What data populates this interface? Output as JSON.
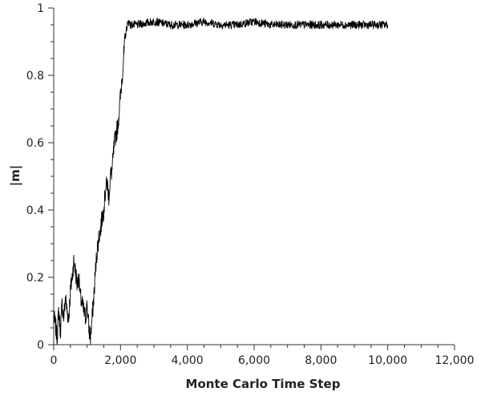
{
  "chart_data": {
    "type": "line",
    "title": "",
    "xlabel": "Monte Carlo Time Step",
    "ylabel": "|m|",
    "xlim": [
      0,
      12000
    ],
    "ylim": [
      0,
      1
    ],
    "grid": false,
    "legend": "none",
    "x_ticks": [
      {
        "value": 0,
        "label": "0"
      },
      {
        "value": 2000,
        "label": "2,000"
      },
      {
        "value": 4000,
        "label": "4,000"
      },
      {
        "value": 6000,
        "label": "6,000"
      },
      {
        "value": 8000,
        "label": "8,000"
      },
      {
        "value": 10000,
        "label": "10,000"
      },
      {
        "value": 12000,
        "label": "12,000"
      }
    ],
    "y_ticks": [
      {
        "value": 0,
        "label": "0"
      },
      {
        "value": 0.2,
        "label": "0.2"
      },
      {
        "value": 0.4,
        "label": "0.4"
      },
      {
        "value": 0.6,
        "label": "0.6"
      },
      {
        "value": 0.8,
        "label": "0.8"
      },
      {
        "value": 1,
        "label": "1"
      }
    ],
    "series": [
      {
        "color": "#000000",
        "x": [
          0,
          50,
          100,
          150,
          200,
          250,
          300,
          350,
          400,
          450,
          500,
          550,
          600,
          650,
          700,
          750,
          800,
          850,
          900,
          950,
          1000,
          1050,
          1100,
          1150,
          1200,
          1250,
          1300,
          1350,
          1400,
          1450,
          1500,
          1550,
          1600,
          1650,
          1700,
          1750,
          1800,
          1850,
          1900,
          1950,
          2000,
          2050,
          2100,
          2150,
          2200,
          2250,
          2300,
          2500,
          3000,
          3500,
          4000,
          4500,
          5000,
          5500,
          6000,
          6500,
          7000,
          7500,
          8000,
          8500,
          9000,
          9500,
          10000
        ],
        "y": [
          0.08,
          0.06,
          0.02,
          0.1,
          0.04,
          0.12,
          0.08,
          0.14,
          0.1,
          0.08,
          0.16,
          0.2,
          0.25,
          0.22,
          0.18,
          0.2,
          0.14,
          0.12,
          0.1,
          0.08,
          0.12,
          0.05,
          0.02,
          0.08,
          0.14,
          0.22,
          0.28,
          0.32,
          0.34,
          0.38,
          0.4,
          0.46,
          0.48,
          0.44,
          0.5,
          0.52,
          0.58,
          0.62,
          0.64,
          0.68,
          0.74,
          0.8,
          0.86,
          0.92,
          0.95,
          0.96,
          0.95,
          0.95,
          0.96,
          0.95,
          0.95,
          0.96,
          0.95,
          0.95,
          0.96,
          0.95,
          0.95,
          0.95,
          0.95,
          0.95,
          0.95,
          0.95,
          0.95
        ]
      }
    ]
  }
}
